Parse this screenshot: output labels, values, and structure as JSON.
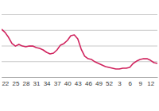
{
  "chart_data": {
    "type": "line",
    "categories": [
      null,
      "22",
      null,
      null,
      "25",
      null,
      null,
      "28",
      null,
      null,
      "31",
      null,
      null,
      "34",
      null,
      null,
      "37",
      null,
      null,
      "40",
      null,
      null,
      "43",
      null,
      null,
      "46",
      null,
      null,
      "49",
      null,
      null,
      "52",
      null,
      null,
      "3",
      null,
      null,
      "6",
      null,
      null,
      "9",
      null,
      null,
      "12",
      null,
      null
    ],
    "values": [
      3.04,
      2.84,
      2.53,
      2.13,
      1.97,
      2.08,
      1.97,
      1.92,
      1.97,
      1.97,
      1.87,
      1.82,
      1.72,
      1.57,
      1.47,
      1.52,
      1.72,
      2.03,
      2.13,
      2.33,
      2.63,
      2.68,
      2.43,
      1.77,
      1.32,
      1.16,
      1.11,
      0.96,
      0.86,
      0.76,
      0.66,
      0.61,
      0.56,
      0.51,
      0.51,
      0.56,
      0.56,
      0.61,
      0.86,
      1.01,
      1.11,
      1.16,
      1.16,
      1.06,
      0.91,
      0.86
    ],
    "color": "#d0245e",
    "ylim": [
      0,
      4
    ],
    "yticks": [
      0,
      1,
      2,
      3,
      4
    ],
    "grid": true,
    "tick_labels": "x"
  }
}
